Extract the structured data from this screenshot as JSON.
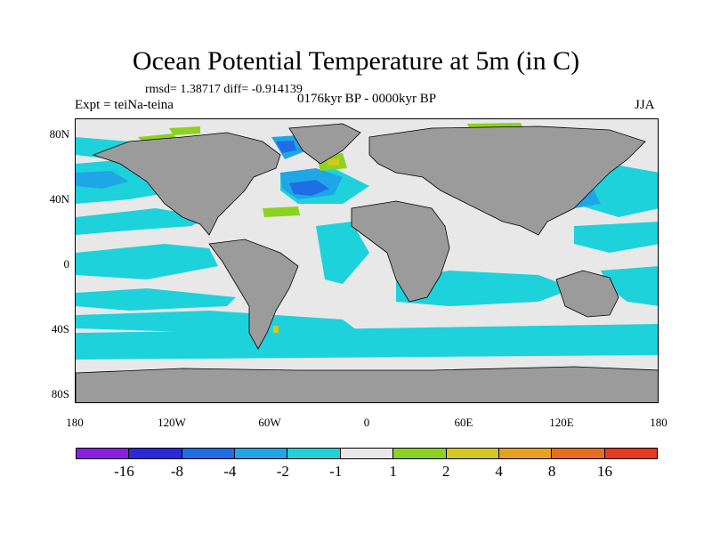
{
  "title": "Ocean Potential Temperature at 5m (in C)",
  "stats": "rmsd= 1.38717 diff= -0.914139",
  "expt": "Expt = teiNa-teina",
  "period": "0176kyr BP - 0000kyr BP",
  "season": "JJA",
  "map": {
    "lat_ticks": [
      "80N",
      "40N",
      "0",
      "40S",
      "80S"
    ],
    "lon_ticks": [
      "180",
      "120W",
      "60W",
      "0",
      "60E",
      "120E",
      "180"
    ],
    "land_color": "#9b9b9b",
    "neutral_color": "#e8e8e8"
  },
  "colorbar": {
    "colors": [
      "#8a1fe0",
      "#2a2ad8",
      "#1e6ee6",
      "#1ea6e6",
      "#1ed2dc",
      "#e8e8e8",
      "#8cd21e",
      "#d2c81e",
      "#e6a21e",
      "#e66e1e",
      "#e63a1e"
    ],
    "labels": [
      "-16",
      "-8",
      "-4",
      "-2",
      "-1",
      "1",
      "2",
      "4",
      "8",
      "16"
    ]
  }
}
